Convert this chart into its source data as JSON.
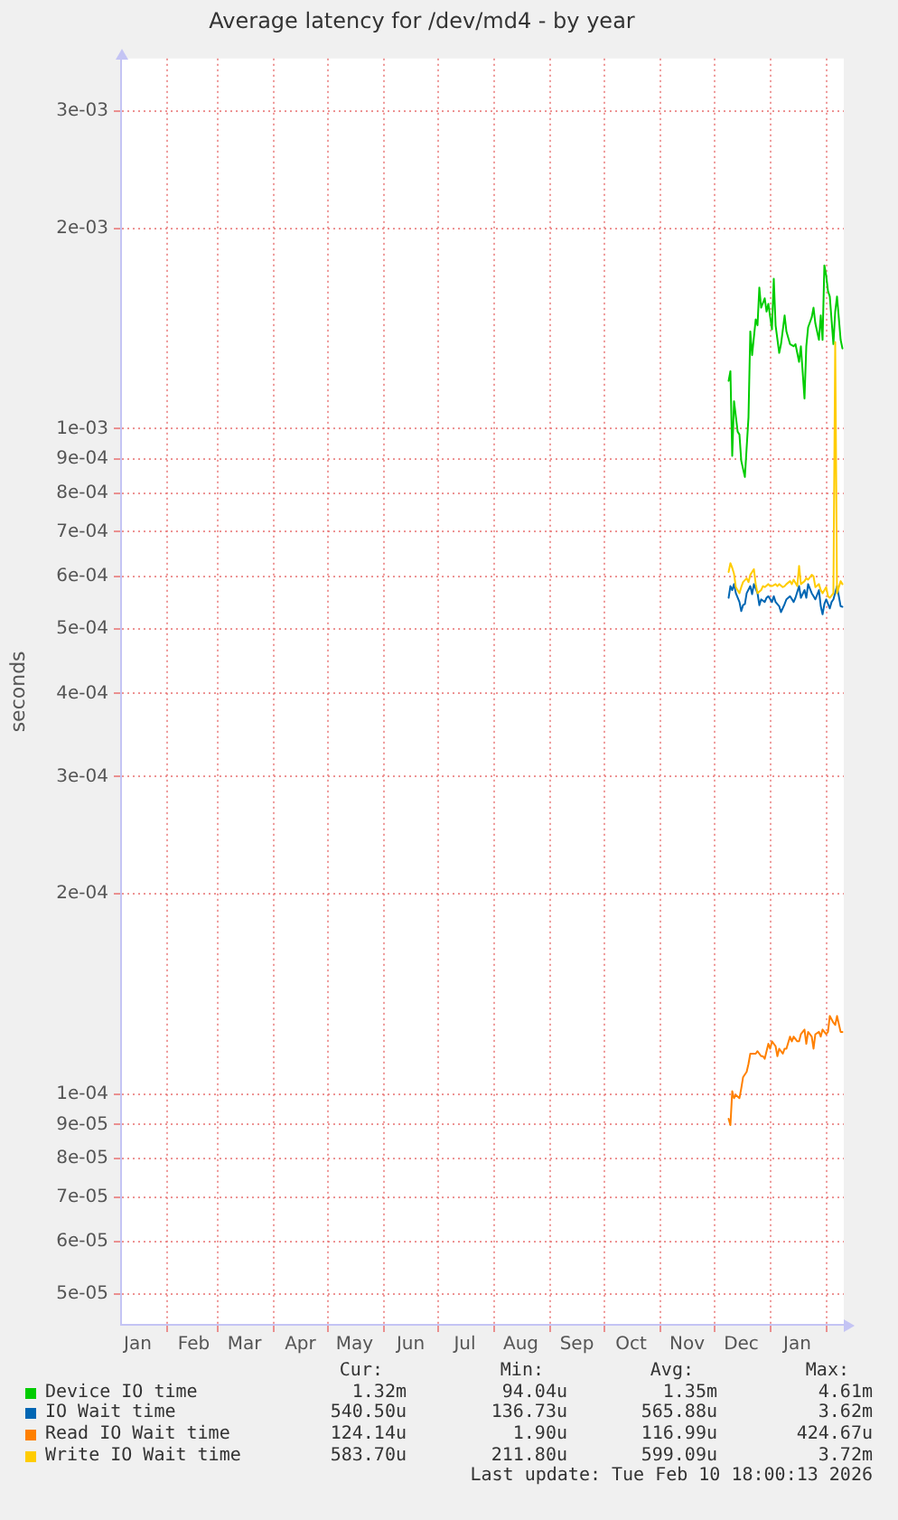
{
  "chart_data": {
    "type": "line",
    "title": "Average latency for /dev/md4 - by year",
    "ylabel": "seconds",
    "log": true,
    "grid": true,
    "legend": "bottom",
    "marker": "none",
    "line_style": "solid",
    "xlim": [
      "2025-01-06T18:00",
      "2026-02-10T18:00"
    ],
    "xticks": [
      {
        "value": "2025-01-16",
        "label": "Jan"
      },
      {
        "value": "2025-02-01",
        "label": null
      },
      {
        "value": "2025-02-16",
        "label": "Feb"
      },
      {
        "value": "2025-03-01",
        "label": null
      },
      {
        "value": "2025-03-16",
        "label": "Mar"
      },
      {
        "value": "2025-04-01",
        "label": null
      },
      {
        "value": "2025-04-16",
        "label": "Apr"
      },
      {
        "value": "2025-05-01",
        "label": null
      },
      {
        "value": "2025-05-16",
        "label": "May"
      },
      {
        "value": "2025-06-01",
        "label": null
      },
      {
        "value": "2025-06-16",
        "label": "Jun"
      },
      {
        "value": "2025-07-01",
        "label": null
      },
      {
        "value": "2025-07-16",
        "label": "Jul"
      },
      {
        "value": "2025-08-01",
        "label": null
      },
      {
        "value": "2025-08-16",
        "label": "Aug"
      },
      {
        "value": "2025-09-01",
        "label": null
      },
      {
        "value": "2025-09-16",
        "label": "Sep"
      },
      {
        "value": "2025-10-01",
        "label": null
      },
      {
        "value": "2025-10-16",
        "label": "Oct"
      },
      {
        "value": "2025-11-01",
        "label": null
      },
      {
        "value": "2025-11-16",
        "label": "Nov"
      },
      {
        "value": "2025-12-01",
        "label": null
      },
      {
        "value": "2025-12-16",
        "label": "Dec"
      },
      {
        "value": "2026-01-01",
        "label": null
      },
      {
        "value": "2026-01-16",
        "label": "Jan"
      },
      {
        "value": "2026-02-01",
        "label": null
      }
    ],
    "ylim": [
      4.5e-05,
      0.0036
    ],
    "yticks": [
      {
        "value": 5e-05,
        "label": "5e-05"
      },
      {
        "value": 6e-05,
        "label": "6e-05"
      },
      {
        "value": 7e-05,
        "label": "7e-05"
      },
      {
        "value": 8e-05,
        "label": "8e-05"
      },
      {
        "value": 9e-05,
        "label": "9e-05"
      },
      {
        "value": 0.0001,
        "label": "1e-04"
      },
      {
        "value": 0.0002,
        "label": "2e-04"
      },
      {
        "value": 0.0003,
        "label": "3e-04"
      },
      {
        "value": 0.0004,
        "label": "4e-04"
      },
      {
        "value": 0.0005,
        "label": "5e-04"
      },
      {
        "value": 0.0006,
        "label": "6e-04"
      },
      {
        "value": 0.0007,
        "label": "7e-04"
      },
      {
        "value": 0.0008,
        "label": "8e-04"
      },
      {
        "value": 0.0009,
        "label": "9e-04"
      },
      {
        "value": 0.001,
        "label": "1e-03"
      },
      {
        "value": 0.002,
        "label": "2e-03"
      },
      {
        "value": 0.003,
        "label": "3e-03"
      }
    ],
    "series": [
      {
        "name": "Device IO time",
        "color": "#00cc00",
        "x": [
          "2025-12-09",
          "2025-12-10",
          "2025-12-11",
          "2025-12-12",
          "2025-12-14",
          "2025-12-15",
          "2025-12-16",
          "2025-12-18",
          "2025-12-20",
          "2025-12-21",
          "2025-12-22",
          "2025-12-24",
          "2025-12-25",
          "2025-12-26",
          "2025-12-27",
          "2025-12-29",
          "2025-12-30",
          "2025-12-31",
          "2026-01-02",
          "2026-01-03",
          "2026-01-04",
          "2026-01-06",
          "2026-01-07",
          "2026-01-09",
          "2026-01-10",
          "2026-01-12",
          "2026-01-14",
          "2026-01-15",
          "2026-01-17",
          "2026-01-18",
          "2026-01-20",
          "2026-01-21",
          "2026-01-22",
          "2026-01-24",
          "2026-01-25",
          "2026-01-26",
          "2026-01-28",
          "2026-01-29",
          "2026-01-30",
          "2026-01-31",
          "2026-02-01",
          "2026-02-02",
          "2026-02-03",
          "2026-02-05",
          "2026-02-06",
          "2026-02-07",
          "2026-02-09",
          "2026-02-10"
        ],
        "values": [
          0.00118,
          0.00122,
          0.00091,
          0.0011,
          0.00099,
          0.00098,
          0.000895,
          0.000846,
          0.00104,
          0.0014,
          0.00129,
          0.00146,
          0.00143,
          0.00163,
          0.00152,
          0.00157,
          0.0015,
          0.00154,
          0.00141,
          0.00168,
          0.00143,
          0.0013,
          0.00134,
          0.00148,
          0.0014,
          0.00134,
          0.00133,
          0.00134,
          0.00126,
          0.00133,
          0.00111,
          0.00133,
          0.00142,
          0.00147,
          0.00152,
          0.00144,
          0.00136,
          0.00148,
          0.00136,
          0.00176,
          0.0017,
          0.00161,
          0.00158,
          0.00134,
          0.0015,
          0.00158,
          0.00136,
          0.00132
        ]
      },
      {
        "name": "IO Wait time",
        "color": "#0066b3",
        "x": [
          "2025-12-09",
          "2025-12-10",
          "2025-12-11",
          "2025-12-12",
          "2025-12-13",
          "2025-12-15",
          "2025-12-16",
          "2025-12-17",
          "2025-12-18",
          "2025-12-19",
          "2025-12-21",
          "2025-12-22",
          "2025-12-23",
          "2025-12-25",
          "2025-12-26",
          "2025-12-27",
          "2025-12-29",
          "2025-12-30",
          "2025-12-31",
          "2026-01-02",
          "2026-01-03",
          "2026-01-04",
          "2026-01-06",
          "2026-01-07",
          "2026-01-09",
          "2026-01-10",
          "2026-01-12",
          "2026-01-14",
          "2026-01-15",
          "2026-01-17",
          "2026-01-18",
          "2026-01-20",
          "2026-01-21",
          "2026-01-22",
          "2026-01-24",
          "2026-01-25",
          "2026-01-26",
          "2026-01-28",
          "2026-01-29",
          "2026-01-30",
          "2026-01-31",
          "2026-02-01",
          "2026-02-03",
          "2026-02-04",
          "2026-02-05",
          "2026-02-07",
          "2026-02-08",
          "2026-02-09",
          "2026-02-10"
        ],
        "values": [
          0.000557,
          0.00058,
          0.000572,
          0.000584,
          0.000566,
          0.000549,
          0.000532,
          0.000543,
          0.000545,
          0.000566,
          0.00058,
          0.000564,
          0.000584,
          0.000566,
          0.000543,
          0.000554,
          0.000549,
          0.000557,
          0.00056,
          0.000549,
          0.00056,
          0.000549,
          0.000541,
          0.00053,
          0.000545,
          0.000554,
          0.00056,
          0.000549,
          0.000557,
          0.00058,
          0.000557,
          0.000572,
          0.000557,
          0.000584,
          0.000566,
          0.00056,
          0.000554,
          0.000572,
          0.000541,
          0.000526,
          0.000545,
          0.000554,
          0.000537,
          0.000549,
          0.000554,
          0.00058,
          0.00056,
          0.000541,
          0.00054
        ]
      },
      {
        "name": "Read IO Wait time",
        "color": "#ff8000",
        "x": [
          "2025-12-09",
          "2025-12-10",
          "2025-12-11",
          "2025-12-12",
          "2025-12-13",
          "2025-12-15",
          "2025-12-16",
          "2025-12-17",
          "2025-12-19",
          "2025-12-20",
          "2025-12-21",
          "2025-12-23",
          "2025-12-24",
          "2025-12-25",
          "2025-12-27",
          "2025-12-28",
          "2025-12-29",
          "2025-12-31",
          "2026-01-01",
          "2026-01-02",
          "2026-01-04",
          "2026-01-05",
          "2026-01-06",
          "2026-01-08",
          "2026-01-09",
          "2026-01-10",
          "2026-01-12",
          "2026-01-13",
          "2026-01-14",
          "2026-01-16",
          "2026-01-17",
          "2026-01-18",
          "2026-01-20",
          "2026-01-21",
          "2026-01-22",
          "2026-01-24",
          "2026-01-25",
          "2026-01-26",
          "2026-01-28",
          "2026-01-29",
          "2026-01-30",
          "2026-02-01",
          "2026-02-02",
          "2026-02-03",
          "2026-02-05",
          "2026-02-06",
          "2026-02-07",
          "2026-02-09",
          "2026-02-10"
        ],
        "values": [
          9.18e-05,
          8.98e-05,
          0.000101,
          9.86e-05,
          9.97e-05,
          9.86e-05,
          0.000102,
          0.000106,
          0.000108,
          0.000111,
          0.000115,
          0.000115,
          0.000115,
          0.000116,
          0.000114,
          0.000114,
          0.000113,
          0.000119,
          0.000117,
          0.00012,
          0.000118,
          0.000114,
          0.000117,
          0.000115,
          0.000117,
          0.000117,
          0.000122,
          0.00012,
          0.000122,
          0.00012,
          0.00012,
          0.000123,
          0.000125,
          0.000119,
          0.000124,
          0.000122,
          0.000117,
          0.000123,
          0.000124,
          0.000122,
          0.000125,
          0.000123,
          0.000124,
          0.000131,
          0.000128,
          0.000127,
          0.000131,
          0.000124,
          0.000124
        ]
      },
      {
        "name": "Write IO Wait time",
        "color": "#ffcc00",
        "x": [
          "2025-12-09",
          "2025-12-10",
          "2025-12-11",
          "2025-12-12",
          "2025-12-13",
          "2025-12-15",
          "2025-12-16",
          "2025-12-17",
          "2025-12-19",
          "2025-12-20",
          "2025-12-21",
          "2025-12-23",
          "2025-12-24",
          "2025-12-25",
          "2025-12-27",
          "2025-12-28",
          "2025-12-29",
          "2025-12-31",
          "2026-01-01",
          "2026-01-02",
          "2026-01-04",
          "2026-01-05",
          "2026-01-06",
          "2026-01-08",
          "2026-01-09",
          "2026-01-10",
          "2026-01-12",
          "2026-01-13",
          "2026-01-14",
          "2026-01-16",
          "2026-01-17",
          "2026-01-18",
          "2026-01-20",
          "2026-01-21",
          "2026-01-22",
          "2026-01-24",
          "2026-01-25",
          "2026-01-26",
          "2026-01-28",
          "2026-01-29",
          "2026-01-30",
          "2026-02-01",
          "2026-02-02",
          "2026-02-03",
          "2026-02-05",
          "2026-02-06",
          "2026-02-07",
          "2026-02-09",
          "2026-02-10"
        ],
        "values": [
          0.000609,
          0.000628,
          0.000618,
          0.000605,
          0.000578,
          0.000566,
          0.000578,
          0.000588,
          0.000596,
          0.000588,
          0.000603,
          0.000615,
          0.000584,
          0.000566,
          0.000572,
          0.00058,
          0.000578,
          0.000584,
          0.00058,
          0.00058,
          0.000584,
          0.00058,
          0.000584,
          0.000578,
          0.00058,
          0.000584,
          0.00059,
          0.000584,
          0.000593,
          0.00058,
          0.000622,
          0.000584,
          0.00059,
          0.000596,
          0.000593,
          0.000603,
          0.0006,
          0.000578,
          0.000584,
          0.000572,
          0.000566,
          0.000578,
          0.00056,
          0.000557,
          0.000566,
          0.00135,
          0.000566,
          0.00059,
          0.000584
        ]
      }
    ],
    "annotations": [
      "Cur:",
      "Min:",
      "Avg:",
      "Max:",
      "1.32m",
      "94.04u",
      "1.35m",
      "4.61m",
      "540.50u",
      "136.73u",
      "565.88u",
      "3.62m",
      "124.14u",
      "1.90u",
      "116.99u",
      "424.67u",
      "583.70u",
      "211.80u",
      "599.09u",
      "3.72m",
      "Last update: Tue Feb 10 18:00:13 2026"
    ]
  }
}
